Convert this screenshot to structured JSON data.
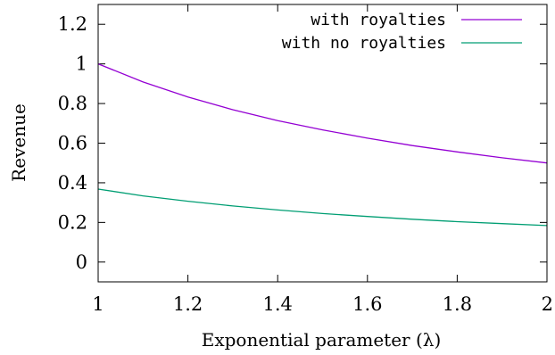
{
  "chart_data": {
    "type": "line",
    "xlabel": "Exponential parameter (λ)",
    "ylabel": "Revenue",
    "xlim": [
      1,
      2
    ],
    "ylim": [
      -0.1,
      1.3
    ],
    "xticks": [
      1,
      1.2,
      1.4,
      1.6,
      1.8,
      2
    ],
    "xtick_labels": [
      "1",
      "1.2",
      "1.4",
      "1.6",
      "1.8",
      "2"
    ],
    "yticks": [
      0,
      0.2,
      0.4,
      0.6,
      0.8,
      1,
      1.2
    ],
    "ytick_labels": [
      "0",
      "0.2",
      "0.4",
      "0.6",
      "0.8",
      "1",
      "1.2"
    ],
    "grid": false,
    "legend_position": "top-right",
    "x": [
      1.0,
      1.1,
      1.2,
      1.3,
      1.4,
      1.5,
      1.6,
      1.7,
      1.8,
      1.9,
      2.0
    ],
    "series": [
      {
        "name": "with royalties",
        "color": "#9400d3",
        "values": [
          1.0,
          0.909,
          0.833,
          0.769,
          0.714,
          0.667,
          0.625,
          0.588,
          0.556,
          0.526,
          0.5
        ]
      },
      {
        "name": "with no royalties",
        "color": "#009e73",
        "values": [
          0.368,
          0.334,
          0.307,
          0.283,
          0.263,
          0.245,
          0.23,
          0.216,
          0.204,
          0.194,
          0.184
        ]
      }
    ]
  }
}
